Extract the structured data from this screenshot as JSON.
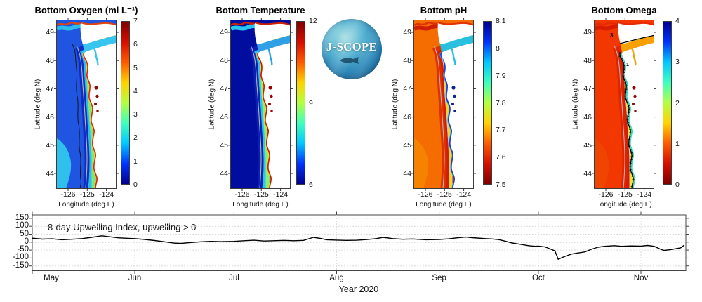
{
  "logo": {
    "text": "J-SCOPE"
  },
  "shared_axes": {
    "ylabel": "Latitude (deg N)",
    "xlabel": "Longitude (deg E)",
    "lat_ticks": [
      "49",
      "48",
      "47",
      "46",
      "45",
      "44"
    ],
    "lon_ticks": [
      "-126",
      "-125",
      "-124"
    ]
  },
  "colormap_jet_bottom_to_top": [
    "#00008f",
    "#0032ff",
    "#00c8ff",
    "#3effbe",
    "#b4ff42",
    "#ffd200",
    "#ff5a00",
    "#d60e00",
    "#800000"
  ],
  "panels": [
    {
      "id": "oxygen",
      "title": "Bottom Oxygen (ml L⁻¹)",
      "colorbar": {
        "min": 0,
        "max": 7,
        "labels": [
          "7",
          "6",
          "5",
          "4",
          "3",
          "2",
          "1",
          "0"
        ],
        "reversed": false
      },
      "palette": {
        "ocean1": "#1f55e0",
        "ocean2": "#0d2cc4",
        "patch": "#2fc0ee",
        "shelf": "#2cbcec",
        "band1": "#7ce878",
        "band2": "#ffe12e",
        "strait": "#37c4ee",
        "fringe": "#d62d12",
        "tfringe": "#e2440e",
        "estuary": "#8f0a00",
        "bc1": "block",
        "bc2": "none",
        "g2": "none"
      }
    },
    {
      "id": "temperature",
      "title": "Bottom Temperature",
      "colorbar": {
        "min": 6,
        "max": 12,
        "labels": [
          "12",
          "9",
          "6"
        ],
        "reversed": false
      },
      "palette": {
        "ocean1": "#000d9e",
        "ocean2": "#0b1fb4",
        "patch": "#000d9e",
        "shelf": "#27c6f2",
        "band1": "#8ef06a",
        "band2": "#ffe12e",
        "strait": "#2fa0e6",
        "fringe": "#d41800",
        "tfringe": "#cc2000",
        "estuary": "#9e0000",
        "bc1": "none",
        "bc2": "none",
        "g2": "none"
      }
    },
    {
      "id": "ph",
      "title": "Bottom pH",
      "colorbar": {
        "min": 7.5,
        "max": 8.1,
        "labels": [
          "8.1",
          "8",
          "7.9",
          "7.8",
          "7.7",
          "7.6",
          "7.5"
        ],
        "reversed": true
      },
      "palette": {
        "ocean1": "#f56c00",
        "ocean2": "#e03000",
        "patch": "#f58200",
        "shelf": "#d01d05",
        "band1": "#ffd21e",
        "band2": "#2cbcec",
        "strait": "#29c0e0",
        "fringe": "#1a3fd0",
        "tfringe": "#e03000",
        "estuary": "#0a1f9e",
        "bc1": "none",
        "bc2": "none",
        "g2": "block"
      }
    },
    {
      "id": "omega",
      "title": "Bottom Omega",
      "colorbar": {
        "min": 0,
        "max": 4,
        "labels": [
          "4",
          "3",
          "2",
          "1",
          "0"
        ],
        "reversed": true
      },
      "palette": {
        "ocean1": "#f23800",
        "ocean2": "#e02400",
        "patch": "#ee4600",
        "shelf": "#d81c04",
        "band1": "#ffe033",
        "band2": "#4ce4c4",
        "strait": "#f8a000",
        "fringe": "#35d8b8",
        "tfringe": "#e82800",
        "estuary": "#8f0a00",
        "bc1": "none",
        "bc2": "block",
        "g2": "block"
      }
    }
  ],
  "timeseries": {
    "annotation": "8-day Upwelling Index, upwelling > 0",
    "xlabel": "Year 2020",
    "ytick_labels": [
      "150",
      "100",
      "50",
      "0",
      "-50",
      "-100",
      "-150"
    ],
    "month_labels": [
      "May",
      "Jun",
      "Jul",
      "Aug",
      "Sep",
      "Oct",
      "Nov"
    ]
  },
  "chart_data": [
    {
      "type": "line",
      "title": "8-day Upwelling Index, upwelling > 0",
      "xlabel": "Year 2020",
      "x_unit": "days since 2020-05-01",
      "x_tick_labels": [
        "May",
        "Jun",
        "Jul",
        "Aug",
        "Sep",
        "Oct",
        "Nov"
      ],
      "month_start_days": [
        0,
        31,
        61,
        92,
        123,
        153,
        184
      ],
      "ylim": [
        -175,
        170
      ],
      "yticks": [
        150,
        100,
        50,
        0,
        -50,
        -100,
        -150
      ],
      "zero_reference_line": true,
      "grid": true,
      "line_color": "#000000",
      "points": [
        [
          0,
          25
        ],
        [
          3,
          19
        ],
        [
          6,
          21
        ],
        [
          9,
          15
        ],
        [
          12,
          18
        ],
        [
          15,
          22
        ],
        [
          18,
          30
        ],
        [
          21,
          40
        ],
        [
          23,
          35
        ],
        [
          26,
          27
        ],
        [
          29,
          24
        ],
        [
          31,
          22
        ],
        [
          34,
          17
        ],
        [
          37,
          10
        ],
        [
          40,
          2
        ],
        [
          43,
          -6
        ],
        [
          45,
          -8
        ],
        [
          47,
          -4
        ],
        [
          51,
          2
        ],
        [
          54,
          5
        ],
        [
          57,
          3
        ],
        [
          61,
          5
        ],
        [
          64,
          9
        ],
        [
          67,
          12
        ],
        [
          70,
          7
        ],
        [
          73,
          9
        ],
        [
          76,
          11
        ],
        [
          79,
          9
        ],
        [
          82,
          11
        ],
        [
          85,
          30
        ],
        [
          87,
          24
        ],
        [
          89,
          15
        ],
        [
          92,
          13
        ],
        [
          95,
          11
        ],
        [
          98,
          12
        ],
        [
          101,
          16
        ],
        [
          104,
          22
        ],
        [
          106,
          30
        ],
        [
          109,
          22
        ],
        [
          112,
          18
        ],
        [
          115,
          20
        ],
        [
          119,
          15
        ],
        [
          123,
          17
        ],
        [
          126,
          21
        ],
        [
          128,
          26
        ],
        [
          131,
          32
        ],
        [
          133,
          28
        ],
        [
          137,
          22
        ],
        [
          139,
          20
        ],
        [
          141,
          16
        ],
        [
          143,
          6
        ],
        [
          145,
          -5
        ],
        [
          148,
          -15
        ],
        [
          150,
          -22
        ],
        [
          152,
          -26
        ],
        [
          153,
          -25
        ],
        [
          155,
          -30
        ],
        [
          156,
          -38
        ],
        [
          158,
          -55
        ],
        [
          159,
          -108
        ],
        [
          161,
          -90
        ],
        [
          163,
          -75
        ],
        [
          165,
          -68
        ],
        [
          167,
          -62
        ],
        [
          169,
          -45
        ],
        [
          171,
          -32
        ],
        [
          173,
          -26
        ],
        [
          176,
          -22
        ],
        [
          178,
          -26
        ],
        [
          181,
          -24
        ],
        [
          184,
          -25
        ],
        [
          186,
          -21
        ],
        [
          188,
          -26
        ],
        [
          190,
          -45
        ],
        [
          191,
          -52
        ],
        [
          193,
          -47
        ],
        [
          194,
          -43
        ],
        [
          196,
          -36
        ],
        [
          197,
          -20
        ]
      ]
    },
    {
      "type": "heatmap",
      "title": "Bottom Oxygen (ml L⁻¹)",
      "region": "US Pacific Northwest coast (Washington–Oregon shelf)",
      "xlabel": "Longitude (deg E)",
      "ylabel": "Latitude (deg N)",
      "xlim": [
        -126.6,
        -123.5
      ],
      "ylim": [
        43.4,
        49.5
      ],
      "colorbar_range": [
        0,
        7
      ],
      "colorbar_ticks": [
        7,
        6,
        5,
        4,
        3,
        2,
        1,
        0
      ],
      "colormap": "jet (red = high oxygen)"
    },
    {
      "type": "heatmap",
      "title": "Bottom Temperature",
      "region": "US Pacific Northwest coast (Washington–Oregon shelf)",
      "xlabel": "Longitude (deg E)",
      "ylabel": "Latitude (deg N)",
      "xlim": [
        -126.6,
        -123.5
      ],
      "ylim": [
        43.4,
        49.5
      ],
      "colorbar_range": [
        6,
        12
      ],
      "colorbar_ticks": [
        12,
        9,
        6
      ],
      "colormap": "jet (red = warm)"
    },
    {
      "type": "heatmap",
      "title": "Bottom pH",
      "region": "US Pacific Northwest coast (Washington–Oregon shelf)",
      "xlabel": "Longitude (deg E)",
      "ylabel": "Latitude (deg N)",
      "xlim": [
        -126.6,
        -123.5
      ],
      "ylim": [
        43.4,
        49.5
      ],
      "colorbar_range": [
        7.5,
        8.1
      ],
      "colorbar_ticks": [
        8.1,
        8,
        7.9,
        7.8,
        7.7,
        7.6,
        7.5
      ],
      "colormap": "reversed jet (blue = high pH)"
    },
    {
      "type": "heatmap",
      "title": "Bottom Omega",
      "region": "US Pacific Northwest coast (Washington–Oregon shelf)",
      "xlabel": "Longitude (deg E)",
      "ylabel": "Latitude (deg N)",
      "xlim": [
        -126.6,
        -123.5
      ],
      "ylim": [
        43.4,
        49.5
      ],
      "colorbar_range": [
        0,
        4
      ],
      "colorbar_ticks": [
        4,
        3,
        2,
        1,
        0
      ],
      "colormap": "reversed jet (blue = high omega), contour labels 1 and 3"
    }
  ]
}
